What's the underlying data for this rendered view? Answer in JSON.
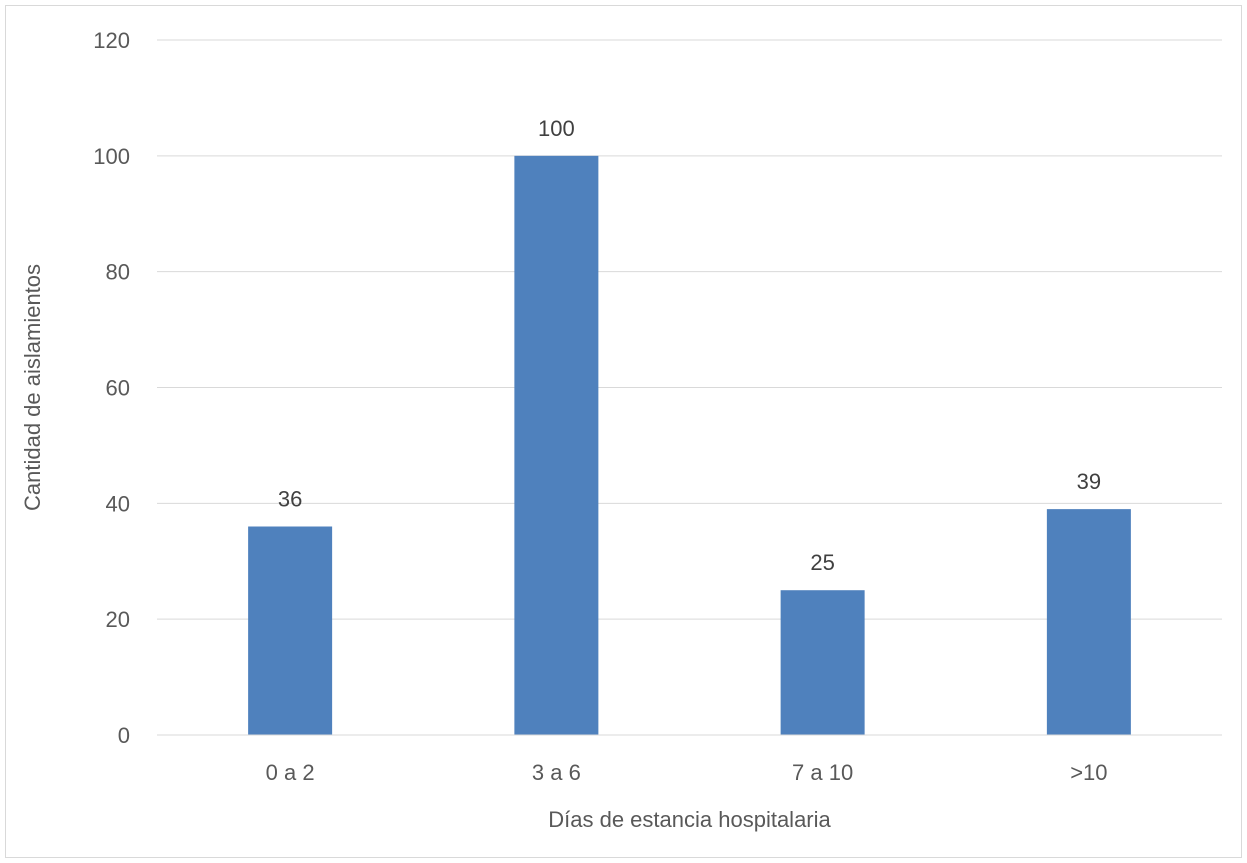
{
  "chart_data": {
    "type": "bar",
    "categories": [
      "0 a 2",
      "3 a 6",
      "7 a 10",
      ">10"
    ],
    "values": [
      36,
      100,
      25,
      39
    ],
    "data_labels": [
      "36",
      "100",
      "25",
      "39"
    ],
    "title": "",
    "xlabel": "Días de estancia hospitalaria",
    "ylabel": "Cantidad de aislamientos",
    "ylim": [
      0,
      120
    ],
    "yticks": [
      0,
      20,
      40,
      60,
      80,
      100,
      120
    ],
    "ytick_labels": [
      "0",
      "20",
      "40",
      "60",
      "80",
      "100",
      "120"
    ],
    "grid": true,
    "legend": "none",
    "colors": {
      "bar": "#4f81bd",
      "grid": "#d9d9d9",
      "axis": "#d9d9d9",
      "text": "#595959"
    }
  }
}
